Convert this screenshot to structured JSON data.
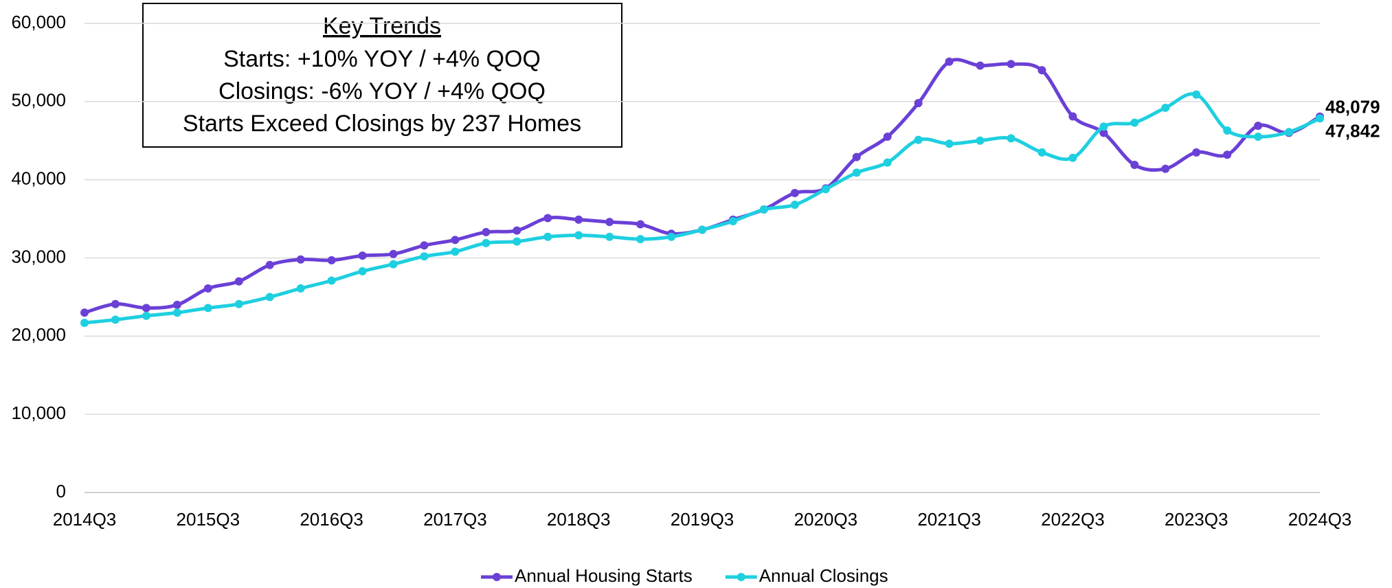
{
  "chart_data": {
    "type": "line",
    "text_box": {
      "title": "Key Trends",
      "lines": [
        "Starts:  +10% YOY / +4% QOQ",
        "Closings:  -6% YOY / +4% QOQ",
        "Starts Exceed Closings by 237 Homes"
      ]
    },
    "categories": [
      "2014Q3",
      null,
      null,
      null,
      "2015Q3",
      null,
      null,
      null,
      "2016Q3",
      null,
      null,
      null,
      "2017Q3",
      null,
      null,
      null,
      "2018Q3",
      null,
      null,
      null,
      "2019Q3",
      null,
      null,
      null,
      "2020Q3",
      null,
      null,
      null,
      "2021Q3",
      null,
      null,
      null,
      "2022Q3",
      null,
      null,
      null,
      "2023Q3",
      null,
      null,
      null,
      "2024Q3"
    ],
    "series": [
      {
        "name": "Annual Housing Starts",
        "color": "#6a40d6",
        "values": [
          23000,
          24100,
          23600,
          24000,
          26100,
          27000,
          29100,
          29800,
          29700,
          30300,
          30500,
          31600,
          32300,
          33300,
          33500,
          35100,
          34900,
          34600,
          34300,
          33100,
          33600,
          34900,
          36200,
          38300,
          38900,
          42900,
          45500,
          49800,
          55100,
          54600,
          54800,
          54000,
          48100,
          46000,
          41900,
          41400,
          43500,
          43200,
          46900,
          46000,
          48079
        ],
        "value_labels": [
          null,
          null,
          null,
          null,
          null,
          null,
          null,
          null,
          null,
          null,
          null,
          null,
          null,
          null,
          null,
          null,
          null,
          null,
          null,
          null,
          null,
          null,
          null,
          null,
          null,
          null,
          null,
          null,
          null,
          null,
          null,
          null,
          null,
          null,
          null,
          null,
          null,
          null,
          null,
          null,
          "48,079"
        ]
      },
      {
        "name": "Annual Closings",
        "color": "#1ecfe0",
        "values": [
          21700,
          22100,
          22600,
          23000,
          23600,
          24100,
          25000,
          26100,
          27100,
          28300,
          29200,
          30200,
          30800,
          31900,
          32100,
          32700,
          32900,
          32700,
          32400,
          32700,
          33600,
          34700,
          36200,
          36800,
          38800,
          40900,
          42200,
          45100,
          44600,
          45000,
          45300,
          43500,
          42800,
          46800,
          47300,
          49200,
          50900,
          46300,
          45500,
          46100,
          47842
        ],
        "value_labels": [
          null,
          null,
          null,
          null,
          null,
          null,
          null,
          null,
          null,
          null,
          null,
          null,
          null,
          null,
          null,
          null,
          null,
          null,
          null,
          null,
          null,
          null,
          null,
          null,
          null,
          null,
          null,
          null,
          null,
          null,
          null,
          null,
          null,
          null,
          null,
          null,
          null,
          null,
          null,
          null,
          "47,842"
        ]
      }
    ],
    "ylim": [
      0,
      60000
    ],
    "yticks": [
      0,
      {
        "value": 10000,
        "label": "10,000"
      },
      {
        "value": 20000,
        "label": "20,000"
      },
      {
        "value": 30000,
        "label": "30,000"
      },
      {
        "value": 40000,
        "label": "40,000"
      },
      {
        "value": 50000,
        "label": "50,000"
      },
      {
        "value": 60000,
        "label": "60,000"
      }
    ],
    "grid": true,
    "legend": "bottom"
  }
}
